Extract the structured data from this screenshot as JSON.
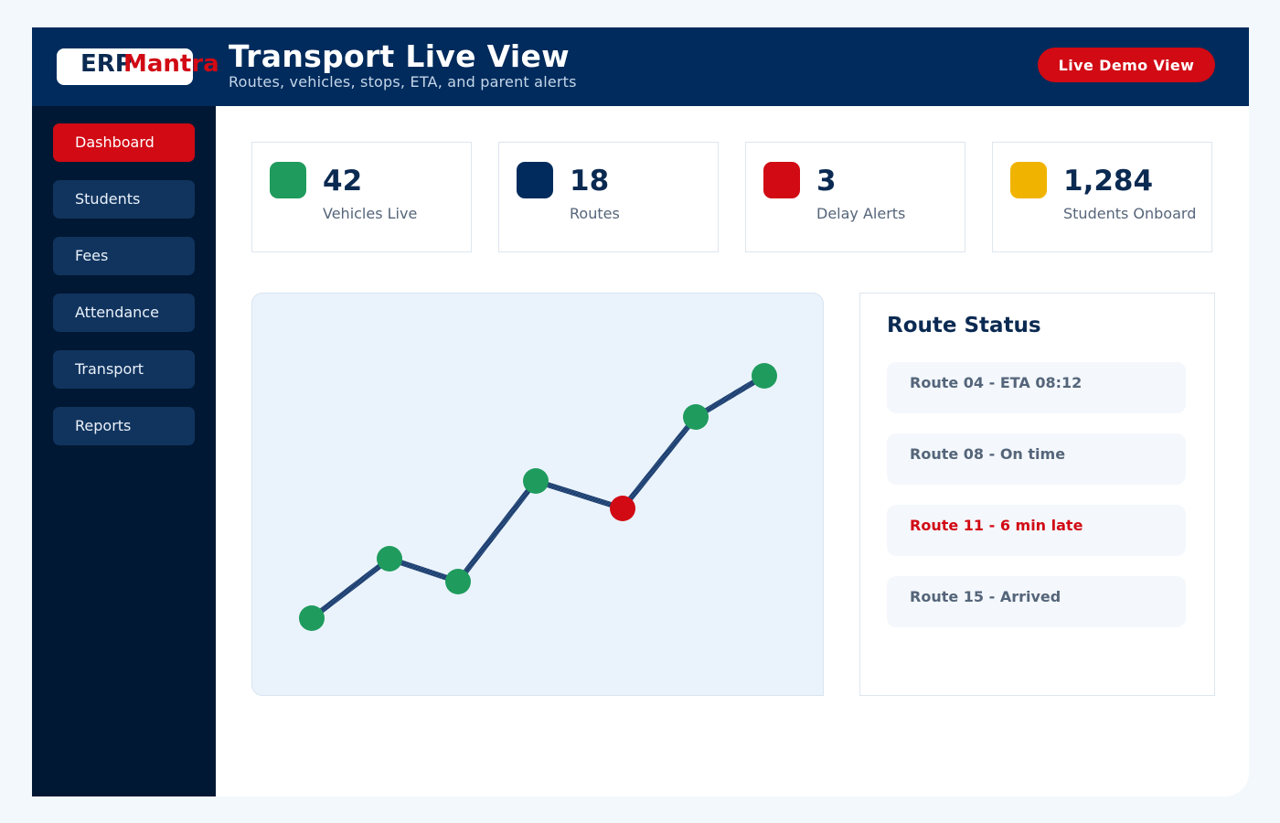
{
  "brand": {
    "logo_part1": "ERP",
    "logo_part2": "Mantra"
  },
  "header": {
    "title": "Transport Live View",
    "subtitle": "Routes, vehicles, stops, ETA, and parent alerts",
    "demo_button": "Live Demo View"
  },
  "sidebar": {
    "items": [
      {
        "label": "Dashboard",
        "active": true
      },
      {
        "label": "Students",
        "active": false
      },
      {
        "label": "Fees",
        "active": false
      },
      {
        "label": "Attendance",
        "active": false
      },
      {
        "label": "Transport",
        "active": false
      },
      {
        "label": "Reports",
        "active": false
      }
    ]
  },
  "stats": [
    {
      "value": "42",
      "label": "Vehicles Live",
      "color": "#1f9b5e"
    },
    {
      "value": "18",
      "label": "Routes",
      "color": "#002b5c"
    },
    {
      "value": "3",
      "label": "Delay Alerts",
      "color": "#d10a14"
    },
    {
      "value": "1,284",
      "label": "Students Onboard",
      "color": "#f0b400"
    }
  ],
  "route_map": {
    "stops": [
      {
        "status": "ok"
      },
      {
        "status": "ok"
      },
      {
        "status": "ok"
      },
      {
        "status": "ok"
      },
      {
        "status": "delayed"
      },
      {
        "status": "ok"
      },
      {
        "status": "ok"
      }
    ],
    "line_color": "#1d3f70",
    "ok_color": "#1f9b5e",
    "delayed_color": "#d10a14"
  },
  "route_status": {
    "title": "Route Status",
    "items": [
      {
        "text": "Route 04 - ETA 08:12",
        "alert": false
      },
      {
        "text": "Route 08 - On time",
        "alert": false
      },
      {
        "text": "Route 11 - 6 min late",
        "alert": true
      },
      {
        "text": "Route 15 - Arrived",
        "alert": false
      }
    ]
  },
  "colors": {
    "header_bg": "#002b5c",
    "sidebar_bg": "#001833",
    "accent": "#d10a14"
  }
}
